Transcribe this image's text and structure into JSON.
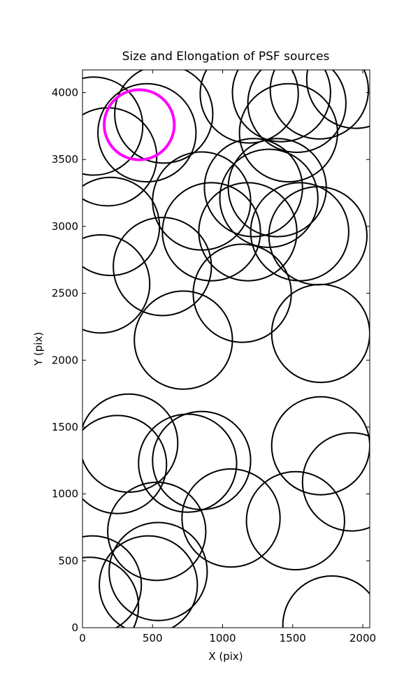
{
  "chart_data": {
    "type": "scatter",
    "title": "Size and Elongation of PSF sources",
    "x_label": "X (pix)",
    "y_label": "Y (pix)",
    "xlim": [
      0,
      2050
    ],
    "ylim": [
      0,
      4170
    ],
    "xticks": [
      0,
      500,
      1000,
      1500,
      2000
    ],
    "yticks": [
      0,
      500,
      1000,
      1500,
      2000,
      2500,
      3000,
      3500,
      4000
    ],
    "series": [
      {
        "color": "#000000",
        "size": 350,
        "x": [
          80,
          180,
          460,
          580,
          1190,
          1420,
          1690,
          1530,
          1470,
          1950,
          1220,
          1390,
          1330,
          200,
          850,
          920,
          1180,
          1550,
          1680,
          570,
          130,
          1140,
          720,
          1700,
          330,
          250,
          850,
          750,
          1700,
          1920,
          1060,
          1520,
          530,
          540,
          470,
          70,
          50,
          1780
        ],
        "y": [
          3750,
          3520,
          3700,
          3840,
          3990,
          4000,
          4020,
          3920,
          3700,
          4100,
          3290,
          3290,
          3210,
          3000,
          3190,
          2960,
          2960,
          2960,
          2930,
          2700,
          2570,
          2500,
          2150,
          2200,
          1380,
          1220,
          1250,
          1230,
          1360,
          1090,
          820,
          800,
          720,
          420,
          320,
          320,
          160,
          20
        ]
      },
      {
        "color": "#ff00ff",
        "size": 250,
        "x": [
          405
        ],
        "y": [
          3760
        ]
      }
    ]
  }
}
